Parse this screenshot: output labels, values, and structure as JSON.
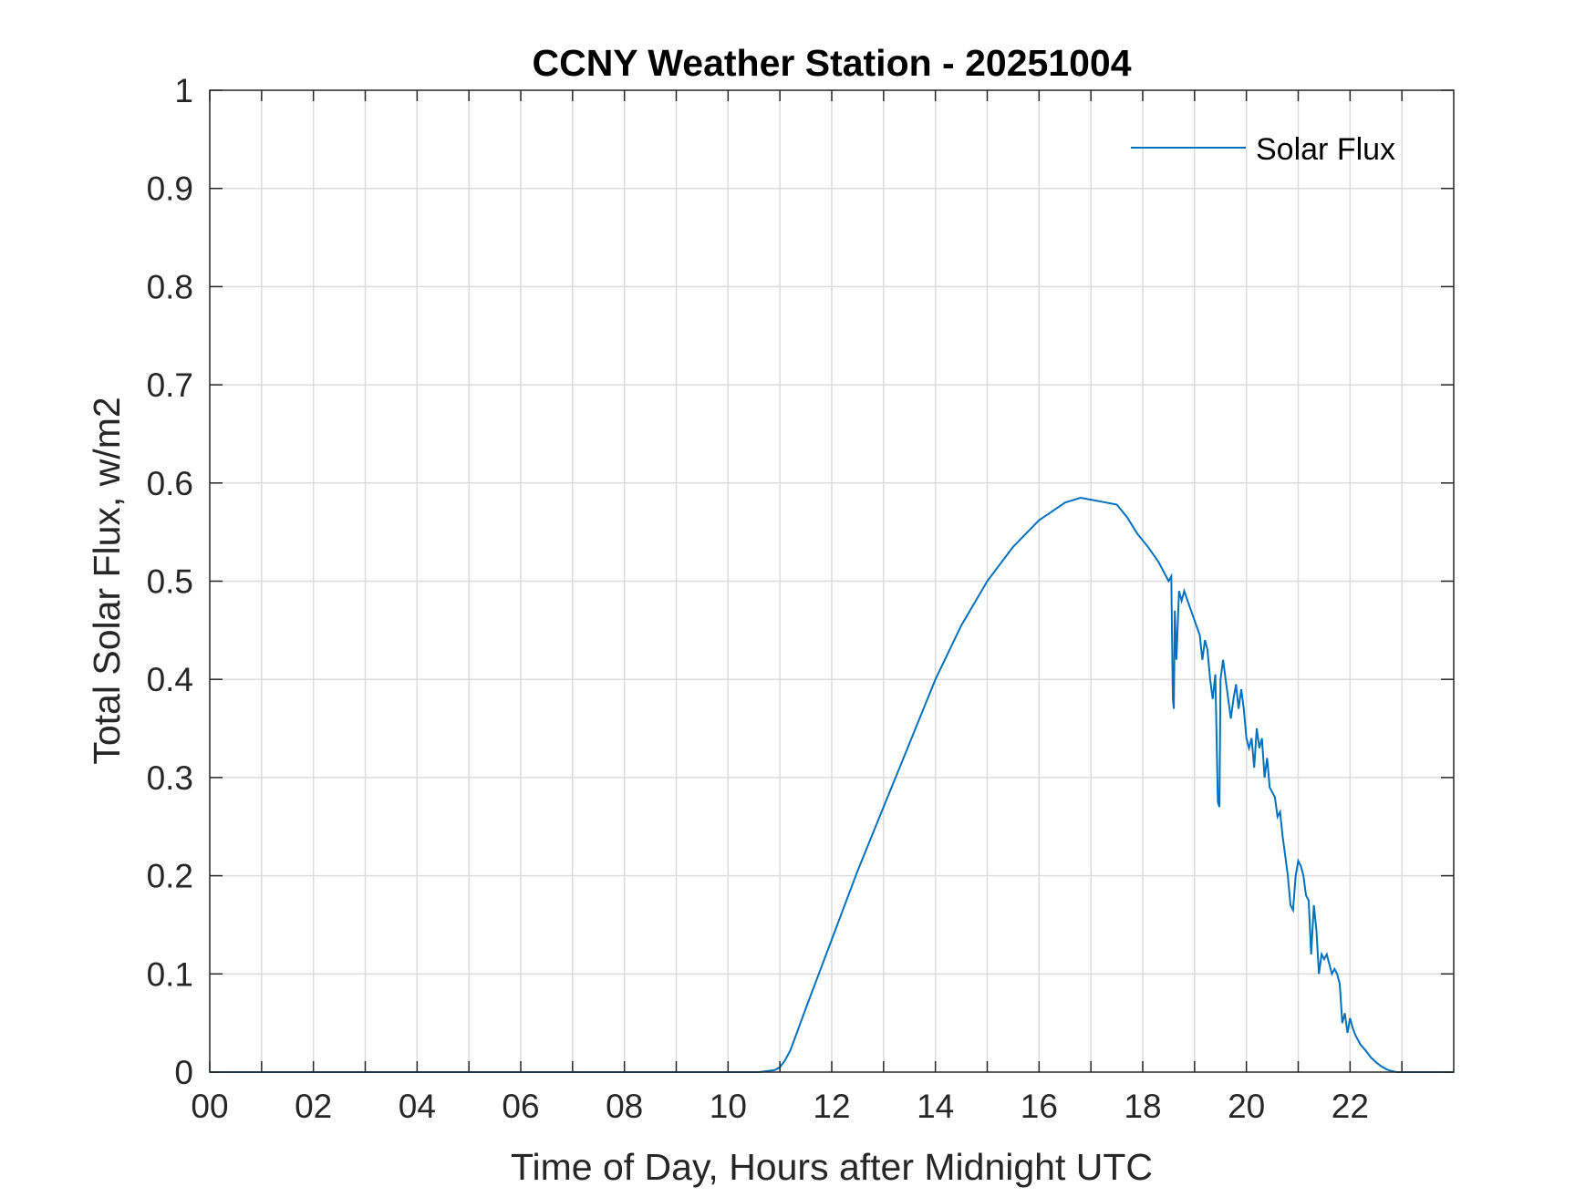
{
  "chart_data": {
    "type": "line",
    "title": "CCNY Weather Station - 20251004",
    "xlabel": "Time of Day, Hours after Midnight UTC",
    "ylabel": "Total Solar Flux, w/m2",
    "xlim": [
      0,
      24
    ],
    "ylim": [
      0,
      1
    ],
    "xticks": [
      0,
      2,
      4,
      6,
      8,
      10,
      12,
      14,
      16,
      18,
      20,
      22
    ],
    "xtick_labels": [
      "00",
      "02",
      "04",
      "06",
      "08",
      "10",
      "12",
      "14",
      "16",
      "18",
      "20",
      "22"
    ],
    "yticks": [
      0,
      0.1,
      0.2,
      0.3,
      0.4,
      0.5,
      0.6,
      0.7,
      0.8,
      0.9,
      1
    ],
    "ytick_labels": [
      "0",
      "0.1",
      "0.2",
      "0.3",
      "0.4",
      "0.5",
      "0.6",
      "0.7",
      "0.8",
      "0.9",
      "1"
    ],
    "grid": true,
    "legend_position": "top-right",
    "colors": {
      "series": "#0072bd",
      "axes": "#262626",
      "grid": "#dcdcdc"
    },
    "series": [
      {
        "name": "Solar Flux",
        "x": [
          0,
          10.6,
          10.9,
          11.0,
          11.1,
          11.2,
          11.3,
          11.5,
          11.75,
          12.0,
          12.5,
          13.0,
          13.5,
          14.0,
          14.5,
          15.0,
          15.5,
          16.0,
          16.5,
          16.8,
          17.0,
          17.3,
          17.5,
          17.7,
          17.9,
          18.1,
          18.3,
          18.45,
          18.5,
          18.55,
          18.58,
          18.6,
          18.62,
          18.65,
          18.7,
          18.75,
          18.8,
          18.9,
          19.0,
          19.1,
          19.15,
          19.2,
          19.25,
          19.3,
          19.35,
          19.4,
          19.45,
          19.48,
          19.5,
          19.55,
          19.6,
          19.7,
          19.75,
          19.8,
          19.85,
          19.9,
          19.95,
          20.0,
          20.05,
          20.1,
          20.15,
          20.2,
          20.25,
          20.3,
          20.35,
          20.4,
          20.45,
          20.5,
          20.55,
          20.6,
          20.65,
          20.7,
          20.75,
          20.8,
          20.85,
          20.9,
          20.95,
          21.0,
          21.05,
          21.1,
          21.15,
          21.2,
          21.25,
          21.3,
          21.35,
          21.4,
          21.45,
          21.5,
          21.55,
          21.6,
          21.65,
          21.7,
          21.75,
          21.8,
          21.85,
          21.9,
          21.95,
          22.0,
          22.05,
          22.1,
          22.2,
          22.3,
          22.4,
          22.5,
          22.6,
          22.7,
          22.8,
          22.9,
          23.0,
          24.0
        ],
        "y": [
          0,
          0,
          0.002,
          0.005,
          0.012,
          0.022,
          0.036,
          0.065,
          0.1,
          0.135,
          0.205,
          0.27,
          0.335,
          0.4,
          0.455,
          0.5,
          0.535,
          0.562,
          0.58,
          0.585,
          0.583,
          0.58,
          0.578,
          0.565,
          0.548,
          0.535,
          0.52,
          0.505,
          0.5,
          0.505,
          0.38,
          0.37,
          0.47,
          0.42,
          0.49,
          0.48,
          0.49,
          0.475,
          0.46,
          0.445,
          0.42,
          0.44,
          0.43,
          0.4,
          0.38,
          0.405,
          0.275,
          0.27,
          0.4,
          0.42,
          0.4,
          0.36,
          0.38,
          0.395,
          0.37,
          0.39,
          0.37,
          0.34,
          0.33,
          0.34,
          0.31,
          0.35,
          0.33,
          0.34,
          0.3,
          0.32,
          0.29,
          0.285,
          0.28,
          0.26,
          0.265,
          0.24,
          0.22,
          0.2,
          0.17,
          0.165,
          0.2,
          0.215,
          0.21,
          0.2,
          0.18,
          0.175,
          0.12,
          0.17,
          0.145,
          0.1,
          0.12,
          0.115,
          0.12,
          0.11,
          0.1,
          0.105,
          0.1,
          0.09,
          0.05,
          0.06,
          0.04,
          0.055,
          0.045,
          0.038,
          0.028,
          0.022,
          0.015,
          0.01,
          0.006,
          0.003,
          0.001,
          0,
          0,
          0
        ]
      }
    ]
  }
}
